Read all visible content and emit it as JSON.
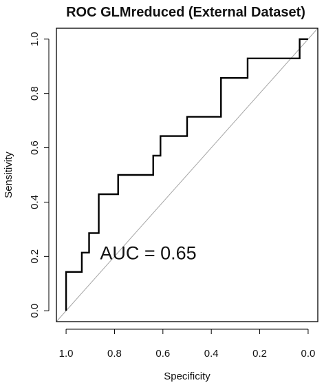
{
  "chart_data": {
    "type": "line",
    "title": "ROC GLMreduced (External Dataset)",
    "xlabel": "Specificity",
    "ylabel": "Sensitivity",
    "xlim": [
      1.04,
      -0.04
    ],
    "ylim": [
      -0.04,
      1.04
    ],
    "x_reversed": true,
    "xticks": [
      1.0,
      0.8,
      0.6,
      0.4,
      0.2,
      0.0
    ],
    "xtick_labels": [
      "1.0",
      "0.8",
      "0.6",
      "0.4",
      "0.2",
      "0.0"
    ],
    "yticks": [
      0.0,
      0.2,
      0.4,
      0.6,
      0.8,
      1.0
    ],
    "ytick_labels": [
      "0.0",
      "0.2",
      "0.4",
      "0.6",
      "0.8",
      "1.0"
    ],
    "grid": false,
    "series": [
      {
        "style": "step",
        "color": "#000000",
        "x": [
          1.0,
          1.0,
          0.935,
          0.935,
          0.905,
          0.905,
          0.865,
          0.865,
          0.785,
          0.785,
          0.64,
          0.64,
          0.61,
          0.61,
          0.5,
          0.5,
          0.36,
          0.36,
          0.25,
          0.25,
          0.035,
          0.035,
          0.0
        ],
        "y": [
          0.0,
          0.143,
          0.143,
          0.214,
          0.214,
          0.286,
          0.286,
          0.429,
          0.429,
          0.5,
          0.5,
          0.571,
          0.571,
          0.643,
          0.643,
          0.714,
          0.714,
          0.857,
          0.857,
          0.929,
          0.929,
          1.0,
          1.0
        ]
      }
    ],
    "reference_line": {
      "color": "#a6a6a6",
      "from": [
        1.04,
        -0.04
      ],
      "to": [
        -0.04,
        1.04
      ]
    },
    "annotations": [
      {
        "text": "AUC =  0.65",
        "x": 0.86,
        "y": 0.19
      }
    ]
  }
}
